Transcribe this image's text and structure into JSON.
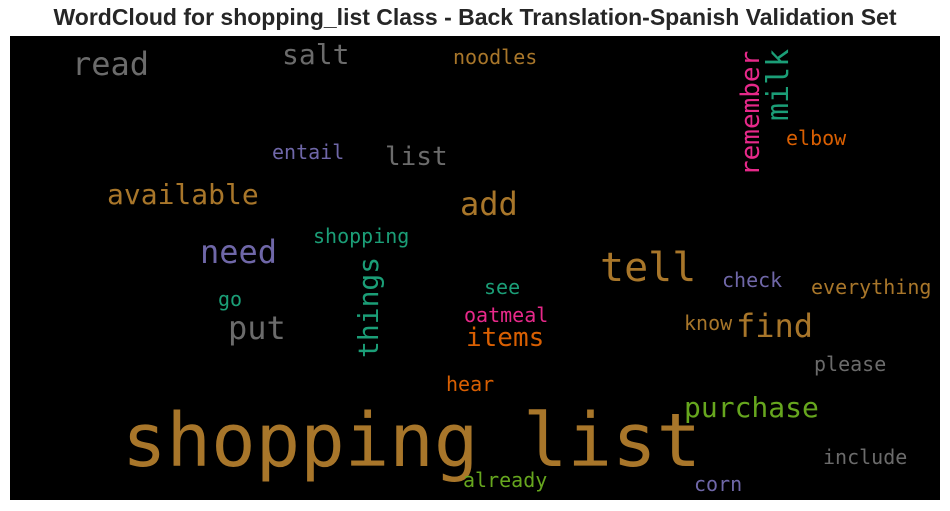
{
  "chart_data": {
    "type": "wordcloud",
    "title": "WordCloud for shopping_list Class - Back Translation-Spanish Validation Set",
    "words": [
      {
        "text": "shopping list",
        "color": "#a8762a"
      },
      {
        "text": "tell",
        "color": "#a8762a"
      },
      {
        "text": "need",
        "color": "#6f67a8"
      },
      {
        "text": "add",
        "color": "#a8762a"
      },
      {
        "text": "find",
        "color": "#a8762a"
      },
      {
        "text": "things",
        "color": "#1b9e77"
      },
      {
        "text": "put",
        "color": "#6b6b6b"
      },
      {
        "text": "read",
        "color": "#6b6b6b"
      },
      {
        "text": "milk",
        "color": "#1b9e77"
      },
      {
        "text": "remember",
        "color": "#e7298a"
      },
      {
        "text": "available",
        "color": "#a8762a"
      },
      {
        "text": "purchase",
        "color": "#66a61e"
      },
      {
        "text": "items",
        "color": "#d95f02"
      },
      {
        "text": "salt",
        "color": "#6b6b6b"
      },
      {
        "text": "list",
        "color": "#6b6b6b"
      },
      {
        "text": "shopping",
        "color": "#1b9e77"
      },
      {
        "text": "noodles",
        "color": "#a8762a"
      },
      {
        "text": "entail",
        "color": "#6f67a8"
      },
      {
        "text": "elbow",
        "color": "#d95f02"
      },
      {
        "text": "check",
        "color": "#6f67a8"
      },
      {
        "text": "everything",
        "color": "#a8762a"
      },
      {
        "text": "see",
        "color": "#1b9e77"
      },
      {
        "text": "oatmeal",
        "color": "#e7298a"
      },
      {
        "text": "go",
        "color": "#1b9e77"
      },
      {
        "text": "know",
        "color": "#a8762a"
      },
      {
        "text": "please",
        "color": "#6b6b6b"
      },
      {
        "text": "hear",
        "color": "#d95f02"
      },
      {
        "text": "include",
        "color": "#6b6b6b"
      },
      {
        "text": "already",
        "color": "#66a61e"
      },
      {
        "text": "corn",
        "color": "#6f67a8"
      }
    ]
  }
}
